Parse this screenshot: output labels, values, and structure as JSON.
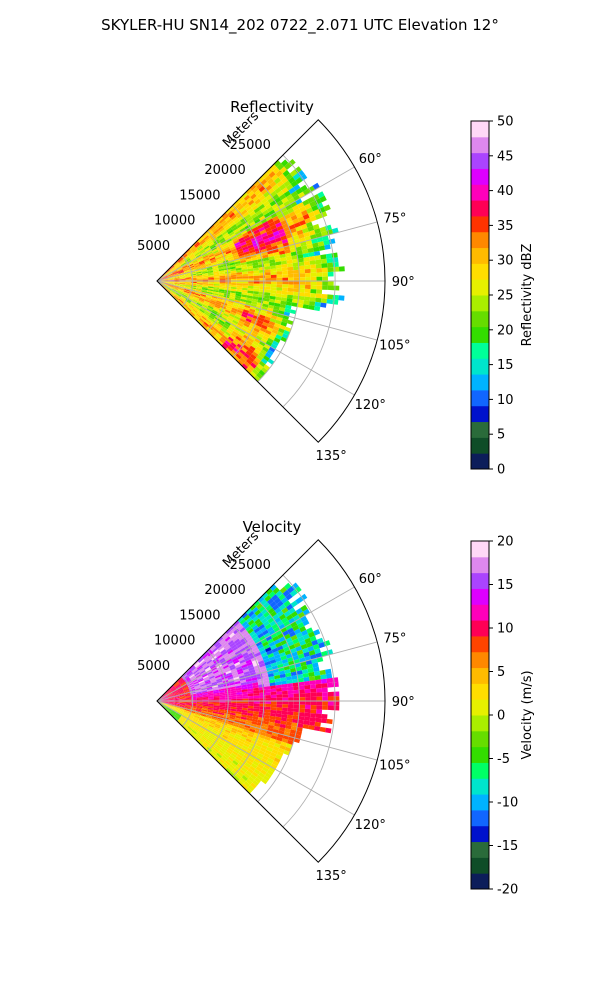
{
  "figure": {
    "title": "SKYLER-HU  SN14_202  0722_2.071 UTC Elevation 12°"
  },
  "chart_data": [
    {
      "type": "heatmap",
      "projection": "polar-sector",
      "title": "Reflectivity",
      "radial_label": "Meters",
      "radial_ticks": [
        5000,
        10000,
        15000,
        20000,
        25000
      ],
      "radial_max": 32000,
      "angle_ticks": [
        "60°",
        "75°",
        "90°",
        "105°",
        "120°",
        "135°"
      ],
      "angle_tick_values": [
        60,
        75,
        90,
        105,
        120,
        135
      ],
      "angle_range": [
        45,
        135
      ],
      "grid": true,
      "colorbar": {
        "label": "Reflectivity dBZ",
        "ticks": [
          "0",
          "5",
          "10",
          "15",
          "20",
          "25",
          "30",
          "35",
          "40",
          "45",
          "50"
        ],
        "range": [
          0,
          50
        ],
        "position": "right"
      },
      "field_summary": {
        "dominant_values_dbz": [
          25,
          32
        ],
        "core_values_dbz": [
          35,
          40
        ],
        "edge_values_dbz": [
          15,
          22
        ]
      }
    },
    {
      "type": "heatmap",
      "projection": "polar-sector",
      "title": "Velocity",
      "radial_label": "Meters",
      "radial_ticks": [
        5000,
        10000,
        15000,
        20000,
        25000
      ],
      "radial_max": 32000,
      "angle_ticks": [
        "60°",
        "75°",
        "90°",
        "105°",
        "120°",
        "135°"
      ],
      "angle_tick_values": [
        60,
        75,
        90,
        105,
        120,
        135
      ],
      "angle_range": [
        45,
        135
      ],
      "grid": true,
      "colorbar": {
        "label": "Velocity (m/s)",
        "ticks": [
          "-20",
          "-15",
          "-10",
          "-5",
          "0",
          "5",
          "10",
          "15",
          "20"
        ],
        "range": [
          -20,
          20
        ],
        "position": "right"
      },
      "field_summary": {
        "north_sector_ms": [
          14,
          18
        ],
        "south_sector_ms": [
          0,
          4
        ],
        "center_band_ms": [
          8,
          12
        ],
        "far_north_ms": [
          -14,
          -8
        ]
      }
    }
  ],
  "colormaps": {
    "reflectivity": [
      "#0c1d5a",
      "#0f4d28",
      "#2a6b3a",
      "#0011cc",
      "#1166ff",
      "#00b3ff",
      "#00e5cc",
      "#00ff99",
      "#33dd00",
      "#66dd00",
      "#aaee00",
      "#e6f000",
      "#ffdd00",
      "#ffbb00",
      "#ff8800",
      "#ff3300",
      "#ff0055",
      "#ff00bb",
      "#dd00ff",
      "#aa44ff",
      "#dd88ee",
      "#ffd9f7"
    ],
    "velocity": [
      "#0c1d5a",
      "#0f4d28",
      "#2a6b3a",
      "#0011cc",
      "#1166ff",
      "#00b3ff",
      "#00e5cc",
      "#00ff66",
      "#33dd00",
      "#66dd00",
      "#aaee00",
      "#e6f000",
      "#ffdd00",
      "#ffbb00",
      "#ff8800",
      "#ff4400",
      "#ff0055",
      "#ff00bb",
      "#dd00ff",
      "#aa44ff",
      "#dd88ee",
      "#ffd9f7"
    ]
  }
}
